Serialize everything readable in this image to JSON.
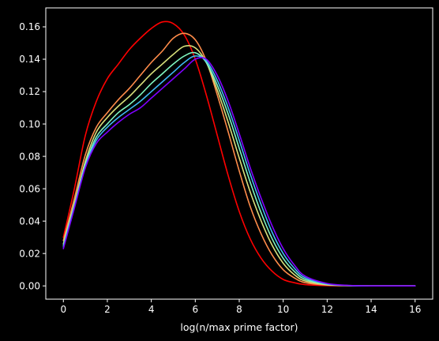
{
  "chart_data": {
    "type": "line",
    "title": "",
    "xlabel": "log(n/max prime factor)",
    "ylabel": "",
    "xlim": [
      -0.8,
      16.8
    ],
    "ylim": [
      -0.0082,
      0.1717
    ],
    "xticks": [
      0,
      2,
      4,
      6,
      8,
      10,
      12,
      14,
      16
    ],
    "yticks": [
      0.0,
      0.02,
      0.04,
      0.06,
      0.08,
      0.1,
      0.12,
      0.14,
      0.16
    ],
    "ytick_labels": [
      "0.00",
      "0.02",
      "0.04",
      "0.06",
      "0.08",
      "0.10",
      "0.12",
      "0.14",
      "0.16"
    ],
    "grid": false,
    "legend": null,
    "background": "#000000",
    "series": [
      {
        "color": "#ff0000",
        "x": [
          0,
          0.5,
          1,
          1.5,
          2,
          2.5,
          3,
          3.5,
          4,
          4.5,
          5,
          5.5,
          6,
          6.5,
          7,
          7.5,
          8,
          8.5,
          9,
          9.5,
          10,
          10.5,
          11,
          12,
          13,
          14,
          15,
          16
        ],
        "y": [
          0.03,
          0.06,
          0.093,
          0.114,
          0.128,
          0.137,
          0.146,
          0.153,
          0.159,
          0.163,
          0.162,
          0.155,
          0.14,
          0.118,
          0.093,
          0.068,
          0.046,
          0.029,
          0.017,
          0.009,
          0.004,
          0.002,
          0.0008,
          0.0002,
          0.0001,
          0.0,
          0.0,
          0.0
        ]
      },
      {
        "color": "#ff8c4a",
        "x": [
          0,
          0.5,
          1,
          1.5,
          2,
          2.5,
          3,
          3.5,
          4,
          4.5,
          5,
          5.5,
          6,
          6.5,
          7,
          7.5,
          8,
          8.5,
          9,
          9.5,
          10,
          10.5,
          11,
          12,
          13,
          14,
          15,
          16
        ],
        "y": [
          0.028,
          0.054,
          0.081,
          0.098,
          0.107,
          0.115,
          0.122,
          0.13,
          0.138,
          0.145,
          0.153,
          0.156,
          0.152,
          0.139,
          0.118,
          0.095,
          0.071,
          0.049,
          0.032,
          0.019,
          0.01,
          0.005,
          0.002,
          0.0005,
          0.0001,
          0.0,
          0.0,
          0.0
        ]
      },
      {
        "color": "#d8e07a",
        "x": [
          0,
          0.5,
          1,
          1.5,
          2,
          2.5,
          3,
          3.5,
          4,
          4.5,
          5,
          5.5,
          6,
          6.5,
          7,
          7.5,
          8,
          8.5,
          9,
          9.5,
          10,
          10.5,
          11,
          12,
          13,
          14,
          15,
          16
        ],
        "y": [
          0.026,
          0.051,
          0.077,
          0.095,
          0.104,
          0.111,
          0.117,
          0.124,
          0.131,
          0.137,
          0.143,
          0.148,
          0.147,
          0.138,
          0.121,
          0.101,
          0.079,
          0.058,
          0.04,
          0.025,
          0.014,
          0.007,
          0.003,
          0.0007,
          0.0001,
          0.0,
          0.0,
          0.0
        ]
      },
      {
        "color": "#7ff5c0",
        "x": [
          0,
          0.5,
          1,
          1.5,
          2,
          2.5,
          3,
          3.5,
          4,
          4.5,
          5,
          5.5,
          6,
          6.5,
          7,
          7.5,
          8,
          8.5,
          9,
          9.5,
          10,
          10.5,
          11,
          12,
          13,
          14,
          15,
          16
        ],
        "y": [
          0.025,
          0.05,
          0.075,
          0.092,
          0.1,
          0.107,
          0.112,
          0.118,
          0.125,
          0.131,
          0.137,
          0.142,
          0.144,
          0.138,
          0.124,
          0.106,
          0.085,
          0.064,
          0.045,
          0.029,
          0.017,
          0.009,
          0.004,
          0.001,
          0.0002,
          0.0,
          0.0,
          0.0
        ]
      },
      {
        "color": "#3fb8f2",
        "x": [
          0,
          0.5,
          1,
          1.5,
          2,
          2.5,
          3,
          3.5,
          4,
          4.5,
          5,
          5.5,
          6,
          6.5,
          7,
          7.5,
          8,
          8.5,
          9,
          9.5,
          10,
          10.5,
          11,
          12,
          13,
          14,
          15,
          16
        ],
        "y": [
          0.024,
          0.049,
          0.074,
          0.09,
          0.098,
          0.104,
          0.109,
          0.114,
          0.12,
          0.126,
          0.132,
          0.138,
          0.142,
          0.139,
          0.127,
          0.11,
          0.09,
          0.069,
          0.05,
          0.033,
          0.02,
          0.011,
          0.005,
          0.0012,
          0.0002,
          0.0,
          0.0,
          0.0
        ]
      },
      {
        "color": "#7f00ff",
        "x": [
          0,
          0.5,
          1,
          1.5,
          2,
          2.5,
          3,
          3.5,
          4,
          4.5,
          5,
          5.5,
          6,
          6.5,
          7,
          7.5,
          8,
          8.5,
          9,
          9.5,
          10,
          10.5,
          11,
          12,
          13,
          14,
          15,
          16
        ],
        "y": [
          0.023,
          0.048,
          0.073,
          0.088,
          0.095,
          0.101,
          0.106,
          0.11,
          0.116,
          0.122,
          0.128,
          0.134,
          0.14,
          0.14,
          0.13,
          0.114,
          0.094,
          0.073,
          0.054,
          0.037,
          0.023,
          0.013,
          0.006,
          0.0015,
          0.0003,
          0.0,
          0.0,
          0.0
        ]
      }
    ]
  }
}
